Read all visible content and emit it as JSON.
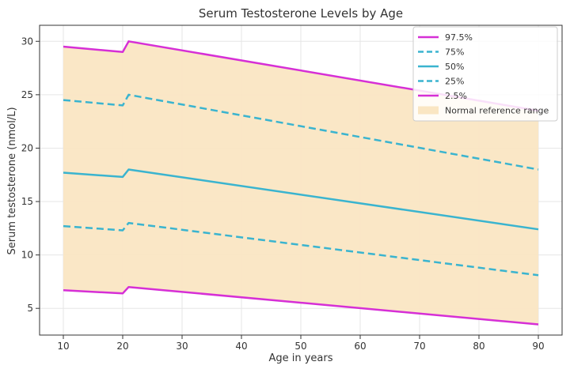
{
  "chart_data": {
    "type": "line",
    "title": "Serum Testosterone Levels by Age",
    "xlabel": "Age in years",
    "ylabel": "Serum testosterone (nmol/L)",
    "xlim": [
      6,
      94
    ],
    "ylim": [
      2.5,
      31.5
    ],
    "xticks": [
      10,
      20,
      30,
      40,
      50,
      60,
      70,
      80,
      90
    ],
    "yticks": [
      5,
      10,
      15,
      20,
      25,
      30
    ],
    "grid": true,
    "legend_position": "top-right",
    "band": {
      "name": "Normal reference range",
      "color": "#FAE6C3",
      "lower_series": "2.5%",
      "upper_series": "97.5%"
    },
    "series": [
      {
        "name": "97.5%",
        "style": "solid",
        "color": "#D62FD6",
        "x": [
          10,
          20,
          21,
          90
        ],
        "y": [
          29.5,
          29.0,
          30.0,
          23.5
        ]
      },
      {
        "name": "75%",
        "style": "dashed",
        "color": "#3AB4CF",
        "x": [
          10,
          20,
          21,
          90
        ],
        "y": [
          24.5,
          24.0,
          25.0,
          18.0
        ]
      },
      {
        "name": "50%",
        "style": "solid",
        "color": "#3AB4CF",
        "x": [
          10,
          20,
          21,
          90
        ],
        "y": [
          17.7,
          17.3,
          18.0,
          12.4
        ]
      },
      {
        "name": "25%",
        "style": "dashed",
        "color": "#3AB4CF",
        "x": [
          10,
          20,
          21,
          90
        ],
        "y": [
          12.7,
          12.3,
          13.0,
          8.1
        ]
      },
      {
        "name": "2.5%",
        "style": "solid",
        "color": "#D62FD6",
        "x": [
          10,
          20,
          21,
          90
        ],
        "y": [
          6.7,
          6.4,
          7.0,
          3.5
        ]
      }
    ]
  }
}
